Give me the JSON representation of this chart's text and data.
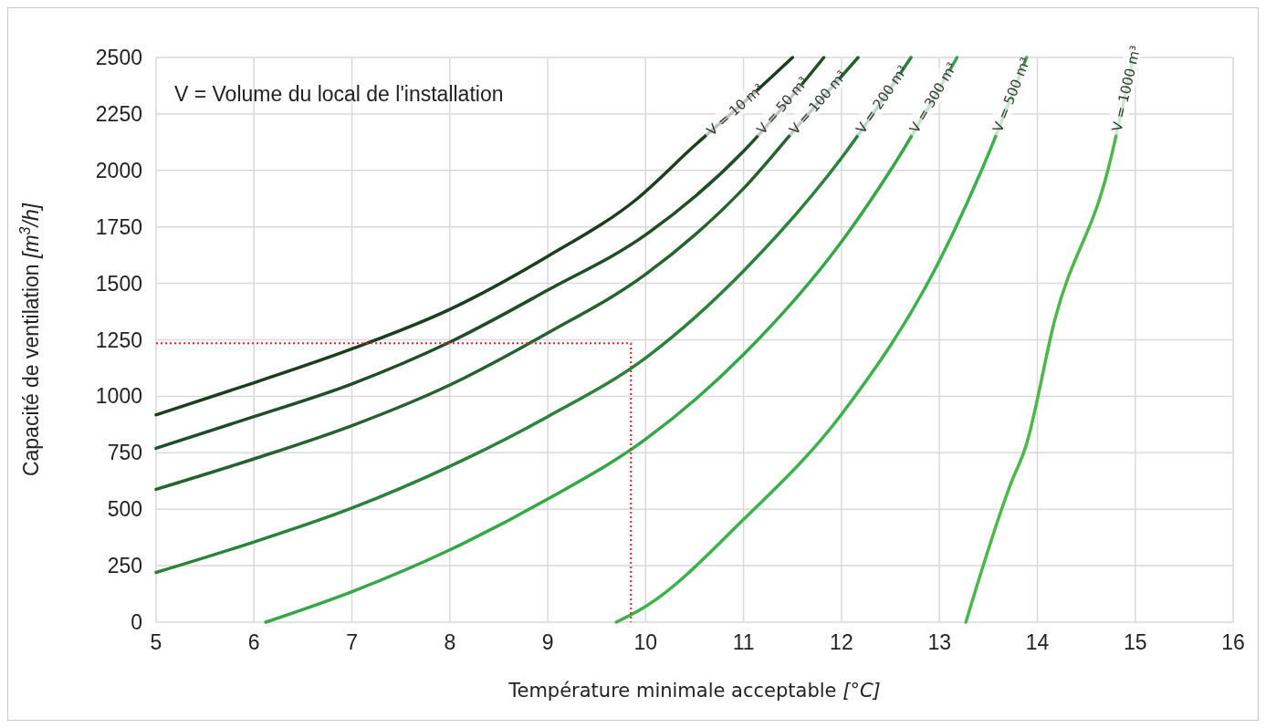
{
  "chart_data": {
    "type": "line",
    "xlabel": "Température minimale acceptable [°C]",
    "ylabel": "Capacité de ventilation [m$^{3}$/h]",
    "annotations": [
      "V = Volume du local de l'installation"
    ],
    "xlim": [
      5,
      16
    ],
    "xticks": [
      5,
      6,
      7,
      8,
      9,
      10,
      11,
      12,
      13,
      14,
      15,
      16
    ],
    "ylim": [
      0,
      2500
    ],
    "yticks": [
      0,
      250,
      500,
      750,
      1000,
      1250,
      1500,
      1750,
      2000,
      2250,
      2500
    ],
    "grid": true,
    "marker": "none",
    "line_style": "solid",
    "series": [
      {
        "name": "V = 10 m³",
        "color": "#1b3d20",
        "x": [
          5,
          6,
          7,
          8,
          9,
          9.9,
          10.5,
          11,
          11.5
        ],
        "values": [
          918,
          1060,
          1210,
          1385,
          1620,
          1870,
          2110,
          2300,
          2500
        ]
      },
      {
        "name": "V = 50 m³",
        "color": "#1f4d26",
        "x": [
          5,
          6,
          7,
          8,
          9,
          10,
          11,
          11.82
        ],
        "values": [
          770,
          910,
          1055,
          1240,
          1470,
          1715,
          2085,
          2500
        ]
      },
      {
        "name": "V = 100 m³",
        "color": "#25622f",
        "x": [
          5,
          6,
          7,
          8,
          9,
          10,
          11,
          11.6,
          12.17
        ],
        "values": [
          588,
          723,
          870,
          1050,
          1280,
          1540,
          1920,
          2220,
          2500
        ]
      },
      {
        "name": "V = 200 m³",
        "color": "#2a823c",
        "x": [
          5,
          6,
          7,
          8,
          9,
          10,
          11,
          12,
          12.71
        ],
        "values": [
          220,
          355,
          505,
          690,
          910,
          1170,
          1555,
          2055,
          2500
        ]
      },
      {
        "name": "V = 300 m³",
        "color": "#34a746",
        "x": [
          6.12,
          7,
          8,
          9,
          10,
          11,
          12,
          12.5,
          13.18
        ],
        "values": [
          0,
          135,
          320,
          545,
          810,
          1185,
          1684,
          2000,
          2500
        ]
      },
      {
        "name": "V = 500 m³",
        "color": "#3bb34a",
        "x": [
          9.7,
          10,
          11,
          12,
          13,
          13.43,
          13.89
        ],
        "values": [
          0,
          70,
          455,
          920,
          1600,
          2000,
          2500
        ]
      },
      {
        "name": "V = 1000 m³",
        "color": "#4cb848",
        "x": [
          13.27,
          13.73,
          13.88,
          14.18,
          14.72,
          14.98
        ],
        "values": [
          0,
          614,
          775,
          1341,
          2000,
          2500
        ]
      },
      {
        "color": "#e8212a",
        "line_style": "dotted",
        "x": [
          5,
          9.85,
          9.85
        ],
        "values": [
          1235,
          1235,
          0
        ]
      }
    ]
  }
}
